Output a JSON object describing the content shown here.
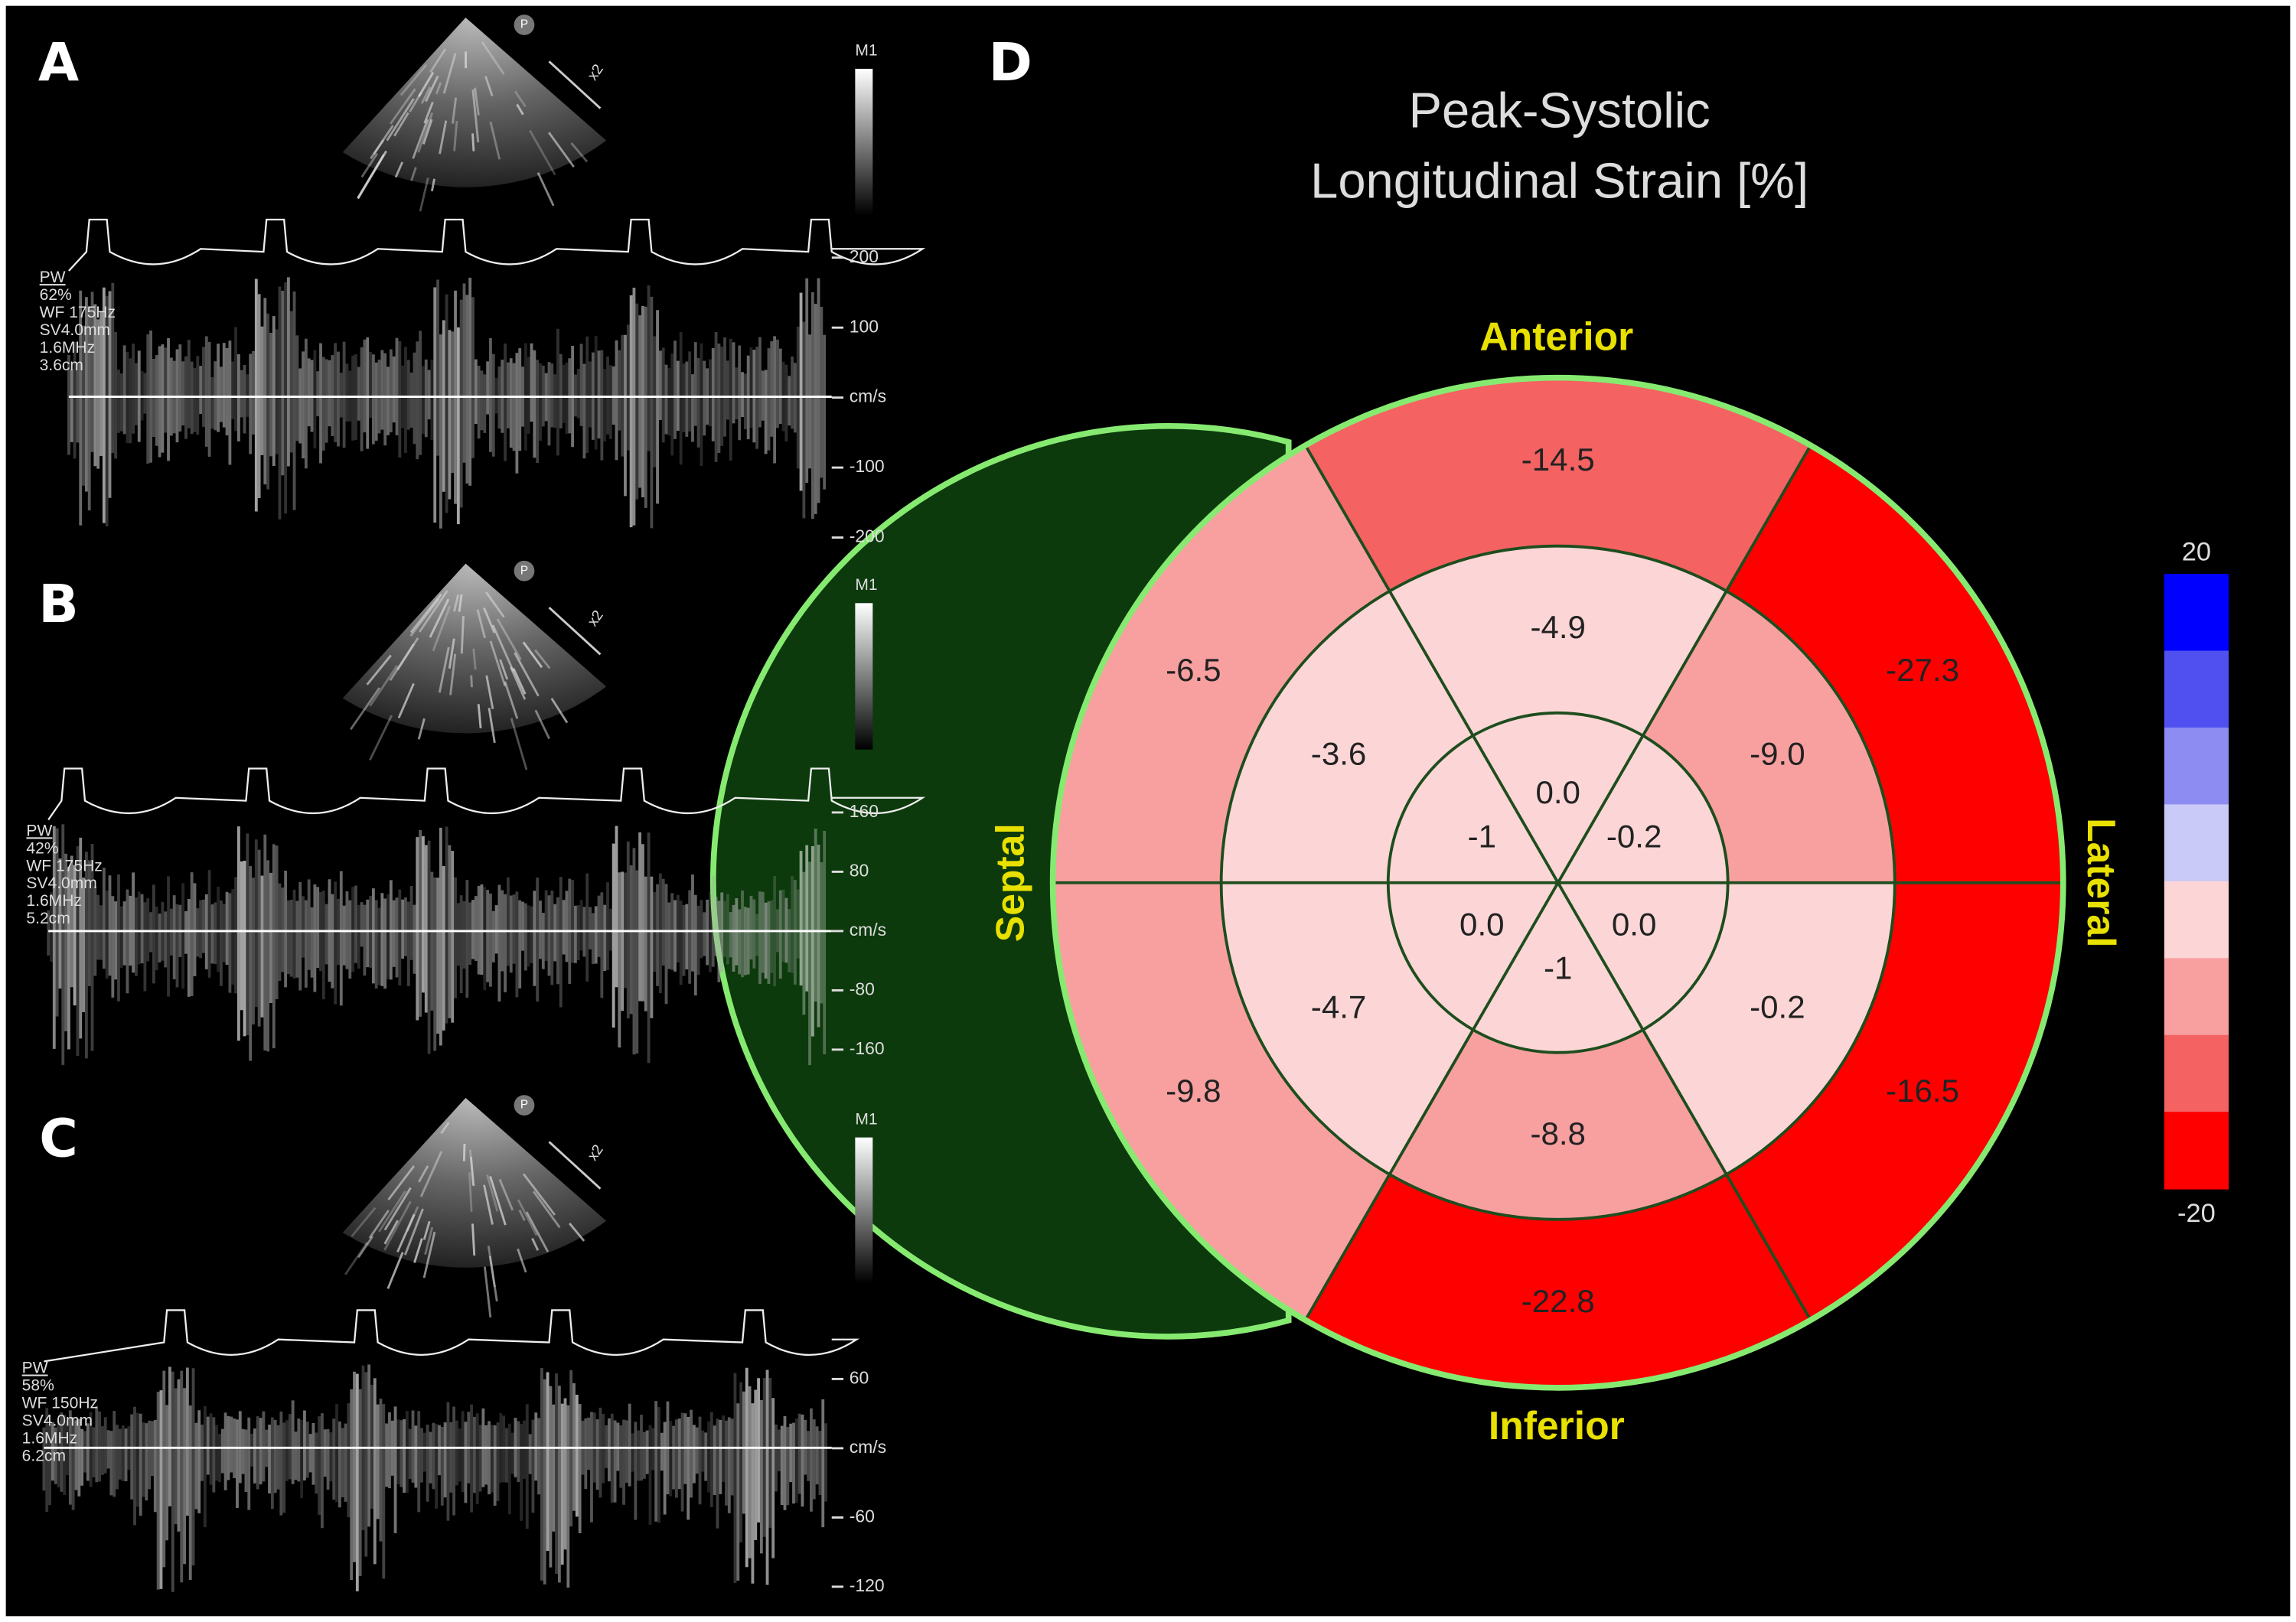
{
  "panels": [
    {
      "label": "A",
      "marker": "P",
      "zoom": "x2",
      "scale": "M1",
      "settings": [
        "PW",
        "62%",
        "WF 175Hz",
        "SV4.0mm",
        "1.6MHz",
        "3.6cm"
      ],
      "ticks": [
        "200",
        "100",
        "cm/s",
        "-100",
        "-200"
      ]
    },
    {
      "label": "B",
      "marker": "P",
      "zoom": "x2",
      "scale": "M1",
      "settings": [
        "PW",
        "42%",
        "WF 175Hz",
        "SV4.0mm",
        "1.6MHz",
        "5.2cm"
      ],
      "ticks": [
        "160",
        "80",
        "cm/s",
        "-80",
        "-160"
      ]
    },
    {
      "label": "C",
      "marker": "P",
      "zoom": "x2",
      "scale": "M1",
      "settings": [
        "PW",
        "58%",
        "WF 150Hz",
        "SV4.0mm",
        "1.6MHz",
        "6.2cm"
      ],
      "ticks": [
        "60",
        "cm/s",
        "-60",
        "-120"
      ]
    }
  ],
  "bullseye": {
    "label": "D",
    "title": [
      "Peak-Systolic",
      "Longitudinal Strain [%]"
    ],
    "directions": {
      "top": "Anterior",
      "bottom": "Inferior",
      "left": "Septal",
      "right": "Lateral"
    },
    "rings": [
      {
        "segments": [
          -14.5,
          -27.3,
          -16.5,
          -22.8,
          -9.8,
          -6.5
        ]
      },
      {
        "segments": [
          -4.9,
          {
            "value": -9,
            "label": "-9.0"
          },
          -0.2,
          -8.8,
          -4.7,
          -3.6
        ]
      },
      {
        "segments": [
          {
            "value": 0,
            "label": "0.0"
          },
          -0.2,
          {
            "value": 0,
            "label": "0.0"
          },
          -1,
          {
            "value": 0,
            "label": "0.0"
          },
          -1
        ]
      }
    ],
    "scale": {
      "max": 20,
      "min": -20,
      "colors": [
        "#0000ff",
        "#5050f0",
        "#8c8cf2",
        "#cacaf8",
        "#fcd6d6",
        "#f8a0a0",
        "#f46262",
        "#ff0000"
      ]
    }
  }
}
